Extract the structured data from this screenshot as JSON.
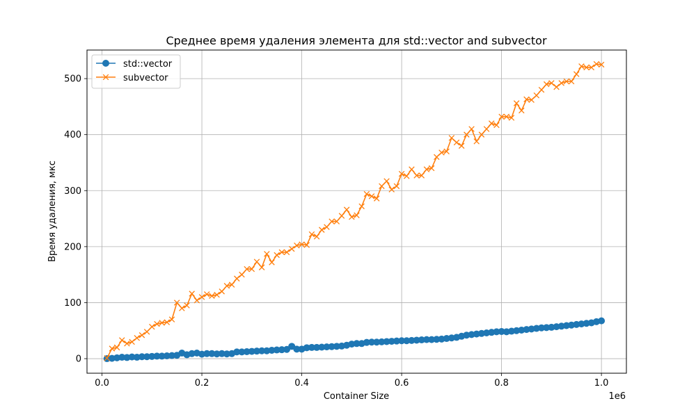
{
  "chart_data": {
    "type": "line",
    "title": "Среднее время удаления элемента для std::vector and subvector",
    "xlabel": "Container Size",
    "ylabel": "Время удаления, мкс",
    "x_offset_label": "1e6",
    "xlim": [
      -30000,
      1050000
    ],
    "ylim": [
      -26,
      551
    ],
    "x_ticks": [
      0,
      200000,
      400000,
      600000,
      800000,
      1000000
    ],
    "x_tick_labels": [
      "0.0",
      "0.2",
      "0.4",
      "0.6",
      "0.8",
      "1.0"
    ],
    "y_ticks": [
      0,
      100,
      200,
      300,
      400,
      500
    ],
    "y_tick_labels": [
      "0",
      "100",
      "200",
      "300",
      "400",
      "500"
    ],
    "grid": true,
    "legend_position": "top-left",
    "colors": {
      "std_vector": "#1f77b4",
      "subvector": "#ff7f0e",
      "grid": "#b0b0b0"
    },
    "x": [
      10000,
      20000,
      30000,
      40000,
      50000,
      60000,
      70000,
      80000,
      90000,
      100000,
      110000,
      120000,
      130000,
      140000,
      150000,
      160000,
      170000,
      180000,
      190000,
      200000,
      210000,
      220000,
      230000,
      240000,
      250000,
      260000,
      270000,
      280000,
      290000,
      300000,
      310000,
      320000,
      330000,
      340000,
      350000,
      360000,
      370000,
      380000,
      390000,
      400000,
      410000,
      420000,
      430000,
      440000,
      450000,
      460000,
      470000,
      480000,
      490000,
      500000,
      510000,
      520000,
      530000,
      540000,
      550000,
      560000,
      570000,
      580000,
      590000,
      600000,
      610000,
      620000,
      630000,
      640000,
      650000,
      660000,
      670000,
      680000,
      690000,
      700000,
      710000,
      720000,
      730000,
      740000,
      750000,
      760000,
      770000,
      780000,
      790000,
      800000,
      810000,
      820000,
      830000,
      840000,
      850000,
      860000,
      870000,
      880000,
      890000,
      900000,
      910000,
      920000,
      930000,
      940000,
      950000,
      960000,
      970000,
      980000,
      990000,
      1000000
    ],
    "series": [
      {
        "name": "std::vector",
        "marker": "o",
        "values": [
          0,
          0.5,
          1.5,
          2.5,
          2,
          3,
          2.5,
          3.5,
          3.5,
          4,
          4.5,
          4.5,
          5,
          5.5,
          6,
          10,
          7,
          9,
          10,
          8,
          9,
          9,
          8.5,
          9,
          8.5,
          9,
          12,
          12,
          12.5,
          13,
          13.5,
          14,
          14,
          15,
          15.5,
          16,
          16.5,
          22,
          17,
          17,
          19.5,
          20,
          20,
          20.5,
          21,
          21.5,
          22,
          22.5,
          24,
          26,
          27,
          27,
          29,
          29.5,
          29.5,
          30,
          30.5,
          31,
          31.5,
          32,
          32,
          32.5,
          33,
          33.5,
          34,
          34,
          34.5,
          35,
          36,
          37,
          38,
          40,
          42,
          43,
          44,
          45,
          46,
          47,
          48,
          48.5,
          48,
          49,
          50,
          51,
          52,
          53,
          54,
          55,
          55.5,
          56,
          57,
          58,
          59,
          60,
          61,
          62,
          63,
          64,
          66,
          67.5
        ]
      },
      {
        "name": "subvector",
        "marker": "x",
        "values": [
          1,
          18,
          20,
          33,
          27,
          30,
          37,
          42,
          48,
          57,
          62,
          64,
          65,
          70,
          100,
          90,
          95,
          116,
          104,
          110,
          115,
          112,
          114,
          120,
          130,
          132,
          143,
          150,
          160,
          160,
          173,
          163,
          187,
          172,
          185,
          190,
          190,
          196,
          202,
          204,
          203,
          222,
          218,
          230,
          235,
          245,
          245,
          255,
          266,
          253,
          256,
          272,
          294,
          290,
          286,
          308,
          317,
          302,
          308,
          330,
          326,
          338,
          327,
          327,
          338,
          340,
          360,
          368,
          370,
          394,
          386,
          380,
          400,
          410,
          388,
          400,
          410,
          420,
          417,
          432,
          432,
          430,
          456,
          443,
          463,
          462,
          470,
          480,
          490,
          492,
          485,
          492,
          495,
          495,
          508,
          522,
          520,
          520,
          526,
          525
        ]
      }
    ]
  }
}
